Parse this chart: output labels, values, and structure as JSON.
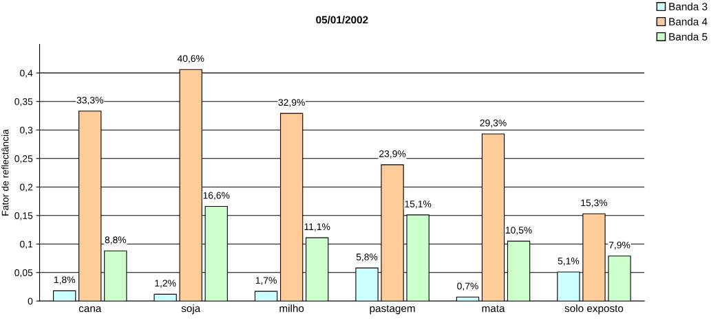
{
  "chart_data": {
    "type": "bar",
    "title": "05/01/2002",
    "ylabel": "Fator de reflectância",
    "categories": [
      "cana",
      "soja",
      "milho",
      "pastagem",
      "mata",
      "solo exposto"
    ],
    "series": [
      {
        "name": "Banda 3",
        "color": "#ccffff",
        "values": [
          0.018,
          0.012,
          0.017,
          0.058,
          0.007,
          0.051
        ],
        "value_labels": [
          "1,8%",
          "1,2%",
          "1,7%",
          "5,8%",
          "0,7%",
          "5,1%"
        ]
      },
      {
        "name": "Banda 4",
        "color": "#ffcc99",
        "values": [
          0.333,
          0.406,
          0.329,
          0.239,
          0.293,
          0.153
        ],
        "value_labels": [
          "33,3%",
          "40,6%",
          "32,9%",
          "23,9%",
          "29,3%",
          "15,3%"
        ]
      },
      {
        "name": "Banda 5",
        "color": "#ccffcc",
        "values": [
          0.088,
          0.166,
          0.111,
          0.151,
          0.105,
          0.079
        ],
        "value_labels": [
          "8,8%",
          "16,6%",
          "11,1%",
          "15,1%",
          "10,5%",
          "7,9%"
        ]
      }
    ],
    "ylim": [
      0,
      0.45
    ],
    "yticks": [
      0,
      {
        "value": 0.05,
        "label": "0,05"
      },
      {
        "value": 0.1,
        "label": "0,1"
      },
      {
        "value": 0.15,
        "label": "0,15"
      },
      {
        "value": 0.2,
        "label": "0,2"
      },
      {
        "value": 0.25,
        "label": "0,25"
      },
      {
        "value": 0.3,
        "label": "0,3"
      },
      {
        "value": 0.35,
        "label": "0,35"
      },
      {
        "value": 0.4,
        "label": "0,4"
      }
    ],
    "grid": "y",
    "legend": "top right"
  }
}
